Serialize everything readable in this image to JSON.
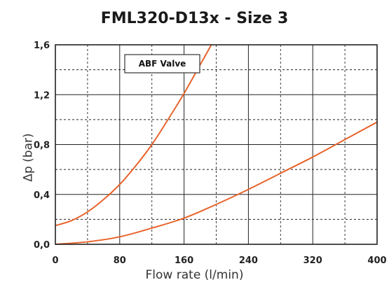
{
  "chart_data": {
    "type": "line",
    "title": "FML320-D13x - Size 3",
    "xlabel": "Flow rate (l/min)",
    "ylabel": "Δp (bar)",
    "xlim": [
      0,
      400
    ],
    "ylim": [
      0,
      1.6
    ],
    "x_ticks": [
      "0",
      "80",
      "160",
      "240",
      "320",
      "400"
    ],
    "y_ticks": [
      "0,0",
      "0,4",
      "0,8",
      "1,2",
      "1,6"
    ],
    "grid": true,
    "annotation": "ABF Valve",
    "series": [
      {
        "color": "#e8642c",
        "x": [
          0,
          20,
          40,
          60,
          80,
          100,
          120,
          140,
          160,
          180,
          194
        ],
        "y": [
          0.15,
          0.19,
          0.26,
          0.36,
          0.48,
          0.63,
          0.8,
          1.0,
          1.21,
          1.44,
          1.6
        ]
      },
      {
        "color": "#e8642c",
        "x": [
          0,
          40,
          80,
          120,
          160,
          200,
          240,
          280,
          320,
          360,
          400
        ],
        "y": [
          0.0,
          0.02,
          0.06,
          0.13,
          0.21,
          0.32,
          0.44,
          0.57,
          0.7,
          0.84,
          0.98
        ]
      }
    ]
  }
}
